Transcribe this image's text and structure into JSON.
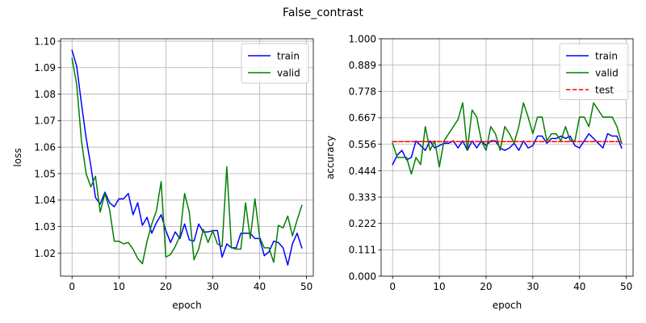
{
  "figure": {
    "title": "False_contrast"
  },
  "chart_data": [
    {
      "type": "line",
      "title": "",
      "xlabel": "epoch",
      "ylabel": "loss",
      "xlim": [
        -2.45,
        51.45
      ],
      "ylim": [
        1.0113,
        1.1009
      ],
      "grid": true,
      "legend_position": "upper right",
      "xticks": [
        0,
        10,
        20,
        30,
        40,
        50
      ],
      "xtick_labels": [
        "0",
        "10",
        "20",
        "30",
        "40",
        "50"
      ],
      "yticks": [
        1.02,
        1.03,
        1.04,
        1.05,
        1.06,
        1.07,
        1.08,
        1.09,
        1.1
      ],
      "ytick_labels": [
        "1.02",
        "1.03",
        "1.04",
        "1.05",
        "1.06",
        "1.07",
        "1.08",
        "1.09",
        "1.10"
      ],
      "x": [
        0,
        1,
        2,
        3,
        4,
        5,
        6,
        7,
        8,
        9,
        10,
        11,
        12,
        13,
        14,
        15,
        16,
        17,
        18,
        19,
        20,
        21,
        22,
        23,
        24,
        25,
        26,
        27,
        28,
        29,
        30,
        31,
        32,
        33,
        34,
        35,
        36,
        37,
        38,
        39,
        40,
        41,
        42,
        43,
        44,
        45,
        46,
        47,
        48,
        49
      ],
      "series": [
        {
          "name": "train",
          "color": "#0000ff",
          "values": [
            1.0965,
            1.0905,
            1.0765,
            1.0635,
            1.053,
            1.041,
            1.0385,
            1.043,
            1.039,
            1.0375,
            1.0405,
            1.0405,
            1.0425,
            1.0345,
            1.039,
            1.0305,
            1.0335,
            1.0275,
            1.0315,
            1.0345,
            1.0285,
            1.024,
            1.028,
            1.0255,
            1.031,
            1.025,
            1.0245,
            1.031,
            1.028,
            1.028,
            1.0285,
            1.0285,
            1.0185,
            1.0235,
            1.022,
            1.022,
            1.0275,
            1.0275,
            1.0275,
            1.0255,
            1.0255,
            1.019,
            1.0205,
            1.0245,
            1.024,
            1.022,
            1.0155,
            1.0235,
            1.0275,
            1.022
          ]
        },
        {
          "name": "valid",
          "color": "#008000",
          "values": [
            1.0935,
            1.0835,
            1.0625,
            1.05,
            1.045,
            1.049,
            1.0355,
            1.0425,
            1.0365,
            1.0245,
            1.0245,
            1.0235,
            1.024,
            1.0215,
            1.018,
            1.016,
            1.0245,
            1.031,
            1.036,
            1.047,
            1.0185,
            1.0195,
            1.0225,
            1.0265,
            1.0425,
            1.0355,
            1.0175,
            1.0215,
            1.029,
            1.024,
            1.0285,
            1.0235,
            1.0225,
            1.0525,
            1.022,
            1.0215,
            1.0215,
            1.039,
            1.0255,
            1.0405,
            1.026,
            1.022,
            1.022,
            1.0165,
            1.0305,
            1.0295,
            1.034,
            1.0265,
            1.0325,
            1.038
          ]
        }
      ]
    },
    {
      "type": "line",
      "title": "",
      "xlabel": "epoch",
      "ylabel": "accuracy",
      "xlim": [
        -2.45,
        51.45
      ],
      "ylim": [
        0,
        1
      ],
      "grid": true,
      "legend_position": "upper right",
      "xticks": [
        0,
        10,
        20,
        30,
        40,
        50
      ],
      "xtick_labels": [
        "0",
        "10",
        "20",
        "30",
        "40",
        "50"
      ],
      "yticks": [
        0,
        0.111,
        0.222,
        0.333,
        0.444,
        0.556,
        0.667,
        0.778,
        0.889,
        1.0
      ],
      "ytick_labels": [
        "0.000",
        "0.111",
        "0.222",
        "0.333",
        "0.444",
        "0.556",
        "0.667",
        "0.778",
        "0.889",
        "1.000"
      ],
      "x": [
        0,
        1,
        2,
        3,
        4,
        5,
        6,
        7,
        8,
        9,
        10,
        11,
        12,
        13,
        14,
        15,
        16,
        17,
        18,
        19,
        20,
        21,
        22,
        23,
        24,
        25,
        26,
        27,
        28,
        29,
        30,
        31,
        32,
        33,
        34,
        35,
        36,
        37,
        38,
        39,
        40,
        41,
        42,
        43,
        44,
        45,
        46,
        47,
        48,
        49
      ],
      "series": [
        {
          "name": "train",
          "color": "#0000ff",
          "style": "solid",
          "values": [
            0.47,
            0.51,
            0.53,
            0.49,
            0.5,
            0.57,
            0.55,
            0.53,
            0.57,
            0.54,
            0.55,
            0.56,
            0.56,
            0.57,
            0.54,
            0.57,
            0.53,
            0.57,
            0.54,
            0.57,
            0.55,
            0.57,
            0.57,
            0.54,
            0.53,
            0.54,
            0.56,
            0.53,
            0.57,
            0.54,
            0.55,
            0.59,
            0.59,
            0.56,
            0.58,
            0.58,
            0.59,
            0.58,
            0.59,
            0.55,
            0.54,
            0.57,
            0.6,
            0.58,
            0.56,
            0.54,
            0.6,
            0.59,
            0.59,
            0.54
          ]
        },
        {
          "name": "valid",
          "color": "#008000",
          "style": "solid",
          "values": [
            0.56,
            0.5,
            0.5,
            0.5,
            0.43,
            0.5,
            0.47,
            0.63,
            0.53,
            0.57,
            0.46,
            0.57,
            0.6,
            0.63,
            0.66,
            0.73,
            0.53,
            0.7,
            0.67,
            0.57,
            0.53,
            0.63,
            0.6,
            0.53,
            0.63,
            0.6,
            0.56,
            0.63,
            0.73,
            0.67,
            0.6,
            0.67,
            0.67,
            0.57,
            0.6,
            0.6,
            0.57,
            0.63,
            0.57,
            0.57,
            0.67,
            0.67,
            0.63,
            0.73,
            0.7,
            0.67,
            0.67,
            0.67,
            0.63,
            0.56
          ]
        },
        {
          "name": "test",
          "color": "#ff0000",
          "style": "dashed",
          "values": [
            0.5667,
            0.5667,
            0.5667,
            0.5667,
            0.5667,
            0.5667,
            0.5667,
            0.5667,
            0.5667,
            0.5667,
            0.5667,
            0.5667,
            0.5667,
            0.5667,
            0.5667,
            0.5667,
            0.5667,
            0.5667,
            0.5667,
            0.5667,
            0.5667,
            0.5667,
            0.5667,
            0.5667,
            0.5667,
            0.5667,
            0.5667,
            0.5667,
            0.5667,
            0.5667,
            0.5667,
            0.5667,
            0.5667,
            0.5667,
            0.5667,
            0.5667,
            0.5667,
            0.5667,
            0.5667,
            0.5667,
            0.5667,
            0.5667,
            0.5667,
            0.5667,
            0.5667,
            0.5667,
            0.5667,
            0.5667,
            0.5667,
            0.5667
          ]
        }
      ]
    }
  ]
}
